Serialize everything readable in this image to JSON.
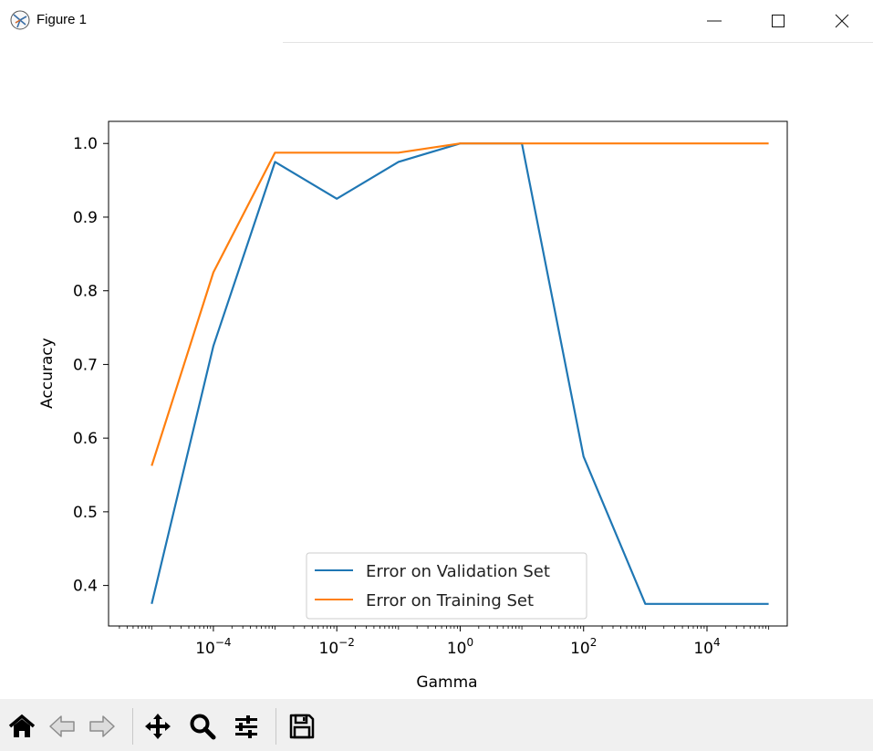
{
  "window": {
    "title": "Figure 1",
    "icons": [
      "app-icon",
      "minimize-icon",
      "maximize-icon",
      "close-icon"
    ]
  },
  "toolbar": {
    "icons": [
      "home-icon",
      "back-arrow-icon",
      "forward-arrow-icon",
      "pan-icon",
      "zoom-icon",
      "configure-subplots-icon",
      "save-icon"
    ]
  },
  "chart_data": {
    "type": "line",
    "xscale": "log",
    "xlabel": "Gamma",
    "ylabel": "Accuracy",
    "xlim": [
      2e-06,
      200000.0
    ],
    "ylim": [
      0.345,
      1.03
    ],
    "x_ticks": [
      {
        "value": 0.0001,
        "base": "10",
        "exp": "−4"
      },
      {
        "value": 0.01,
        "base": "10",
        "exp": "−2"
      },
      {
        "value": 1,
        "base": "10",
        "exp": "0"
      },
      {
        "value": 100,
        "base": "10",
        "exp": "2"
      },
      {
        "value": 10000,
        "base": "10",
        "exp": "4"
      }
    ],
    "y_ticks": [
      "0.4",
      "0.5",
      "0.6",
      "0.7",
      "0.8",
      "0.9",
      "1.0"
    ],
    "x": [
      1e-05,
      0.0001,
      0.001,
      0.01,
      0.1,
      1,
      10,
      100,
      1000,
      10000,
      100000
    ],
    "series": [
      {
        "name": "Error on Validation Set",
        "color": "#1f77b4",
        "values": [
          0.375,
          0.725,
          0.975,
          0.925,
          0.975,
          1.0,
          1.0,
          0.575,
          0.375,
          0.375,
          0.375
        ]
      },
      {
        "name": "Error on Training Set",
        "color": "#ff7f0e",
        "values": [
          0.5625,
          0.825,
          0.9875,
          0.9875,
          0.9875,
          1.0,
          1.0,
          1.0,
          1.0,
          1.0,
          1.0
        ]
      }
    ],
    "grid": false,
    "legend": "lower-center"
  }
}
